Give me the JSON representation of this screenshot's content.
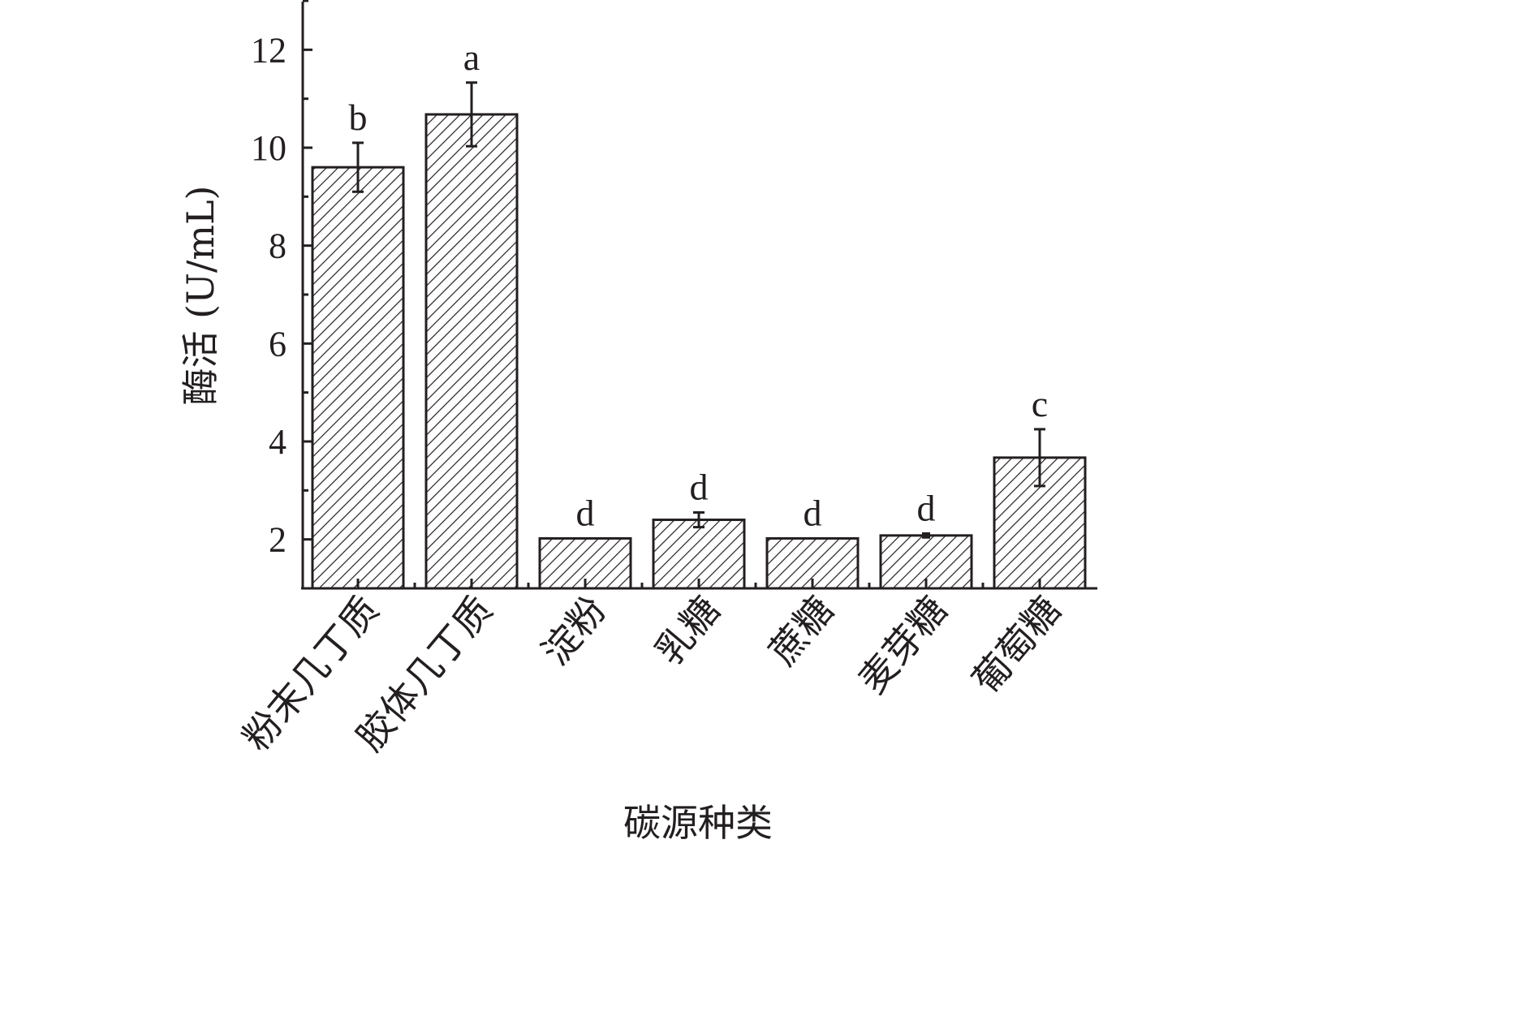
{
  "chart_data": {
    "type": "bar",
    "xlabel": "碳源种类",
    "ylabel": "酶活 (U/mL)",
    "ylim": [
      1,
      13
    ],
    "yticks": [
      2,
      4,
      6,
      8,
      10,
      12
    ],
    "categories": [
      "粉末几丁质",
      "胶体几丁质",
      "淀粉",
      "乳糖",
      "蔗糖",
      "麦芽糖",
      "葡萄糖"
    ],
    "values": [
      9.6,
      10.68,
      2.02,
      2.4,
      2.02,
      2.08,
      3.67
    ],
    "errors": [
      0.5,
      0.65,
      0.0,
      0.15,
      0.0,
      0.04,
      0.58
    ],
    "significance": [
      "b",
      "a",
      "d",
      "d",
      "d",
      "d",
      "c"
    ],
    "bar_pattern": "diagonal-hatch",
    "bar_fill": "#ffffff",
    "bar_stroke": "#231f20",
    "grid": false
  }
}
